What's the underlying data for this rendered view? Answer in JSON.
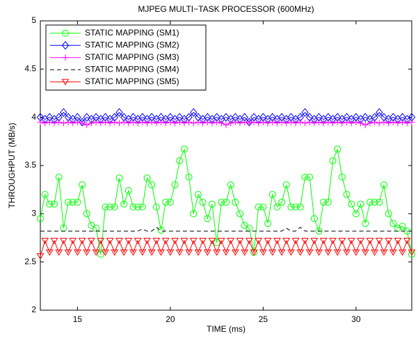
{
  "chart_data": {
    "type": "line",
    "title": "MJPEG MULTI−TASK PROCESSOR (600MHz)",
    "xlabel": "TIME (ms)",
    "ylabel": "THROUGHPUT (MB/s)",
    "xlim": [
      13,
      33
    ],
    "ylim": [
      2,
      5
    ],
    "xticks": [
      15,
      20,
      25,
      30
    ],
    "yticks": [
      2,
      2.5,
      3,
      3.5,
      4,
      4.5,
      5
    ],
    "legend": "upper left",
    "x": [
      13,
      13.25,
      13.5,
      13.75,
      14,
      14.25,
      14.5,
      14.75,
      15,
      15.25,
      15.5,
      15.75,
      16,
      16.25,
      16.5,
      16.75,
      17,
      17.25,
      17.5,
      17.75,
      18,
      18.25,
      18.5,
      18.75,
      19,
      19.25,
      19.5,
      19.75,
      20,
      20.25,
      20.5,
      20.75,
      21,
      21.25,
      21.5,
      21.75,
      22,
      22.25,
      22.5,
      22.75,
      23,
      23.25,
      23.5,
      23.75,
      24,
      24.25,
      24.5,
      24.75,
      25,
      25.25,
      25.5,
      25.75,
      26,
      26.25,
      26.5,
      26.75,
      27,
      27.25,
      27.5,
      27.75,
      28,
      28.25,
      28.5,
      28.75,
      29,
      29.25,
      29.5,
      29.75,
      30,
      30.25,
      30.5,
      30.75,
      31,
      31.25,
      31.5,
      31.75,
      32,
      32.25,
      32.5,
      32.75,
      33
    ],
    "series": [
      {
        "name": "STATIC MAPPING (SM1)",
        "color": "#00ff00",
        "marker": "circle",
        "linestyle": "solid",
        "values": [
          2.95,
          3.2,
          3.1,
          3.1,
          3.38,
          2.85,
          3.12,
          3.12,
          3.12,
          3.3,
          3.0,
          2.88,
          2.85,
          2.58,
          3.07,
          3.07,
          3.07,
          3.37,
          3.1,
          3.24,
          3.07,
          3.07,
          3.07,
          3.37,
          3.3,
          3.07,
          2.83,
          3.12,
          3.12,
          3.3,
          3.55,
          3.67,
          3.38,
          3.0,
          3.2,
          3.12,
          2.95,
          3.1,
          2.7,
          3.12,
          3.12,
          3.3,
          3.12,
          3.0,
          2.88,
          2.85,
          2.6,
          3.07,
          3.07,
          2.9,
          3.2,
          3.07,
          3.12,
          3.3,
          3.07,
          3.07,
          3.07,
          3.38,
          3.38,
          2.95,
          2.82,
          3.12,
          3.12,
          3.55,
          3.67,
          3.38,
          3.2,
          3.1,
          3.0,
          3.1,
          2.9,
          3.12,
          3.12,
          3.12,
          3.3,
          3.0,
          2.9,
          2.85,
          2.87,
          2.82,
          2.58
        ]
      },
      {
        "name": "STATIC MAPPING (SM2)",
        "color": "#0000ff",
        "marker": "diamond",
        "linestyle": "solid",
        "values": [
          4.0,
          3.98,
          4.0,
          3.98,
          4.0,
          4.05,
          4.0,
          3.98,
          4.0,
          3.95,
          4.0,
          3.98,
          4.0,
          3.98,
          4.0,
          3.98,
          4.0,
          4.05,
          4.0,
          3.98,
          4.0,
          3.98,
          4.0,
          3.98,
          4.0,
          3.98,
          4.0,
          3.98,
          4.0,
          3.98,
          4.0,
          3.98,
          4.0,
          4.05,
          4.0,
          3.98,
          4.0,
          3.98,
          4.0,
          3.98,
          4.0,
          3.98,
          4.0,
          3.98,
          4.0,
          3.95,
          4.0,
          3.98,
          4.0,
          3.98,
          4.0,
          3.98,
          4.0,
          3.98,
          4.0,
          3.98,
          4.0,
          4.05,
          4.0,
          3.98,
          4.0,
          3.98,
          4.0,
          3.98,
          4.0,
          3.98,
          4.0,
          3.98,
          4.0,
          3.98,
          4.0,
          3.98,
          4.0,
          4.05,
          4.0,
          3.98,
          4.0,
          3.98,
          4.0,
          3.98,
          4.0
        ]
      },
      {
        "name": "STATIC MAPPING (SM3)",
        "color": "#ff00ff",
        "marker": "plus",
        "linestyle": "solid",
        "values": [
          3.95,
          3.94,
          3.95,
          3.94,
          3.95,
          3.94,
          3.95,
          3.94,
          3.95,
          3.94,
          3.92,
          3.94,
          3.95,
          3.94,
          3.95,
          3.94,
          3.95,
          3.94,
          3.95,
          3.94,
          3.95,
          3.94,
          3.95,
          3.94,
          3.95,
          3.94,
          3.95,
          3.94,
          3.95,
          3.94,
          3.95,
          3.94,
          3.95,
          3.94,
          3.95,
          3.94,
          3.95,
          3.94,
          3.95,
          3.94,
          3.92,
          3.94,
          3.95,
          3.94,
          3.95,
          3.94,
          3.95,
          3.94,
          3.95,
          3.94,
          3.95,
          3.94,
          3.95,
          3.94,
          3.95,
          3.94,
          3.95,
          3.94,
          3.95,
          3.94,
          3.95,
          3.94,
          3.95,
          3.94,
          3.95,
          3.94,
          3.95,
          3.94,
          3.95,
          3.94,
          3.92,
          3.94,
          3.95,
          3.94,
          3.95,
          3.94,
          3.95,
          3.94,
          3.95,
          3.94,
          3.95
        ]
      },
      {
        "name": "STATIC MAPPING (SM4)",
        "color": "#000000",
        "marker": "none",
        "linestyle": "dashed",
        "values": [
          2.82,
          2.82,
          2.82,
          2.82,
          2.82,
          2.82,
          2.82,
          2.82,
          2.82,
          2.82,
          2.82,
          2.82,
          2.82,
          2.82,
          2.82,
          2.82,
          2.82,
          2.82,
          2.82,
          2.82,
          2.82,
          2.82,
          2.84,
          2.82,
          2.82,
          2.86,
          2.82,
          2.82,
          2.82,
          2.82,
          2.82,
          2.82,
          2.82,
          2.82,
          2.82,
          2.82,
          2.82,
          2.82,
          2.82,
          2.82,
          2.82,
          2.82,
          2.82,
          2.82,
          2.82,
          2.82,
          2.82,
          2.82,
          2.82,
          2.82,
          2.82,
          2.82,
          2.82,
          2.85,
          2.82,
          2.82,
          2.86,
          2.82,
          2.82,
          2.82,
          2.82,
          2.82,
          2.82,
          2.82,
          2.82,
          2.82,
          2.82,
          2.82,
          2.82,
          2.82,
          2.82,
          2.82,
          2.82,
          2.82,
          2.82,
          2.82,
          2.82,
          2.82,
          2.82,
          2.82,
          2.82
        ]
      },
      {
        "name": "STATIC MAPPING (SM5)",
        "color": "#ff0000",
        "marker": "triangle-down",
        "linestyle": "solid",
        "values": [
          2.56,
          2.72,
          2.6,
          2.72,
          2.6,
          2.72,
          2.6,
          2.72,
          2.6,
          2.72,
          2.6,
          2.72,
          2.6,
          2.72,
          2.6,
          2.72,
          2.6,
          2.72,
          2.6,
          2.72,
          2.6,
          2.72,
          2.6,
          2.72,
          2.6,
          2.72,
          2.6,
          2.72,
          2.6,
          2.72,
          2.6,
          2.72,
          2.6,
          2.72,
          2.6,
          2.72,
          2.6,
          2.72,
          2.6,
          2.72,
          2.6,
          2.72,
          2.6,
          2.72,
          2.6,
          2.72,
          2.6,
          2.72,
          2.6,
          2.72,
          2.6,
          2.72,
          2.6,
          2.72,
          2.6,
          2.72,
          2.6,
          2.72,
          2.6,
          2.72,
          2.6,
          2.72,
          2.6,
          2.72,
          2.6,
          2.72,
          2.6,
          2.72,
          2.6,
          2.72,
          2.6,
          2.72,
          2.6,
          2.72,
          2.6,
          2.72,
          2.6,
          2.72,
          2.6,
          2.72,
          2.6
        ]
      }
    ]
  }
}
